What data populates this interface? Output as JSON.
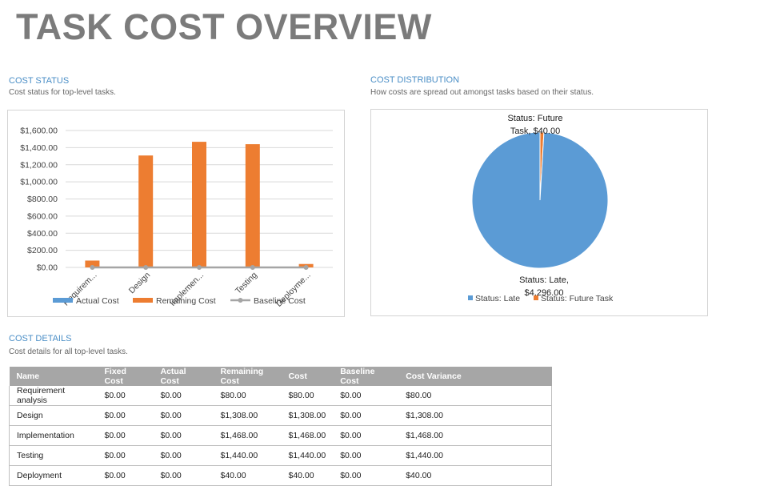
{
  "page": {
    "title": "TASK COST OVERVIEW"
  },
  "cost_status": {
    "heading": "COST STATUS",
    "subtitle": "Cost status for top-level tasks."
  },
  "cost_distribution": {
    "heading": "COST DISTRIBUTION",
    "subtitle": "How costs are spread out amongst tasks based on their status."
  },
  "cost_details": {
    "heading": "COST DETAILS",
    "subtitle": "Cost details for all top-level tasks.",
    "columns": [
      "Name",
      "Fixed Cost",
      "Actual Cost",
      "Remaining Cost",
      "Cost",
      "Baseline Cost",
      "Cost Variance"
    ],
    "rows": [
      [
        "Requirement analysis",
        "$0.00",
        "$0.00",
        "$80.00",
        "$80.00",
        "$0.00",
        "$80.00"
      ],
      [
        "Design",
        "$0.00",
        "$0.00",
        "$1,308.00",
        "$1,308.00",
        "$0.00",
        "$1,308.00"
      ],
      [
        "Implementation",
        "$0.00",
        "$0.00",
        "$1,468.00",
        "$1,468.00",
        "$0.00",
        "$1,468.00"
      ],
      [
        "Testing",
        "$0.00",
        "$0.00",
        "$1,440.00",
        "$1,440.00",
        "$0.00",
        "$1,440.00"
      ],
      [
        "Deployment",
        "$0.00",
        "$0.00",
        "$40.00",
        "$40.00",
        "$0.00",
        "$40.00"
      ]
    ]
  },
  "colors": {
    "actual": "#5b9bd5",
    "remaining": "#ed7d31",
    "baseline": "#a5a5a5"
  },
  "chart_data": [
    {
      "type": "bar",
      "categories": [
        "Requirem...",
        "Design",
        "Implemen...",
        "Testing",
        "Deployme..."
      ],
      "series": [
        {
          "name": "Actual Cost",
          "values": [
            0,
            0,
            0,
            0,
            0
          ]
        },
        {
          "name": "Remaining Cost",
          "values": [
            80,
            1308,
            1468,
            1440,
            40
          ]
        },
        {
          "name": "Baseline Cost",
          "values": [
            0,
            0,
            0,
            0,
            0
          ]
        }
      ],
      "yticks": [
        "$1,600.00",
        "$1,400.00",
        "$1,200.00",
        "$1,000.00",
        "$800.00",
        "$600.00",
        "$400.00",
        "$200.00",
        "$0.00"
      ],
      "ylim": [
        0,
        1600
      ],
      "grid": true,
      "legend": "bottom"
    },
    {
      "type": "pie",
      "slices": [
        {
          "name": "Status: Late",
          "value": 4296,
          "label_line1": "Status: Late,",
          "label_line2": "$4,296.00"
        },
        {
          "name": "Status: Future Task",
          "value": 40,
          "label_line1": "Status: Future",
          "label_line2": "Task, $40.00"
        }
      ],
      "legend": "bottom"
    }
  ]
}
